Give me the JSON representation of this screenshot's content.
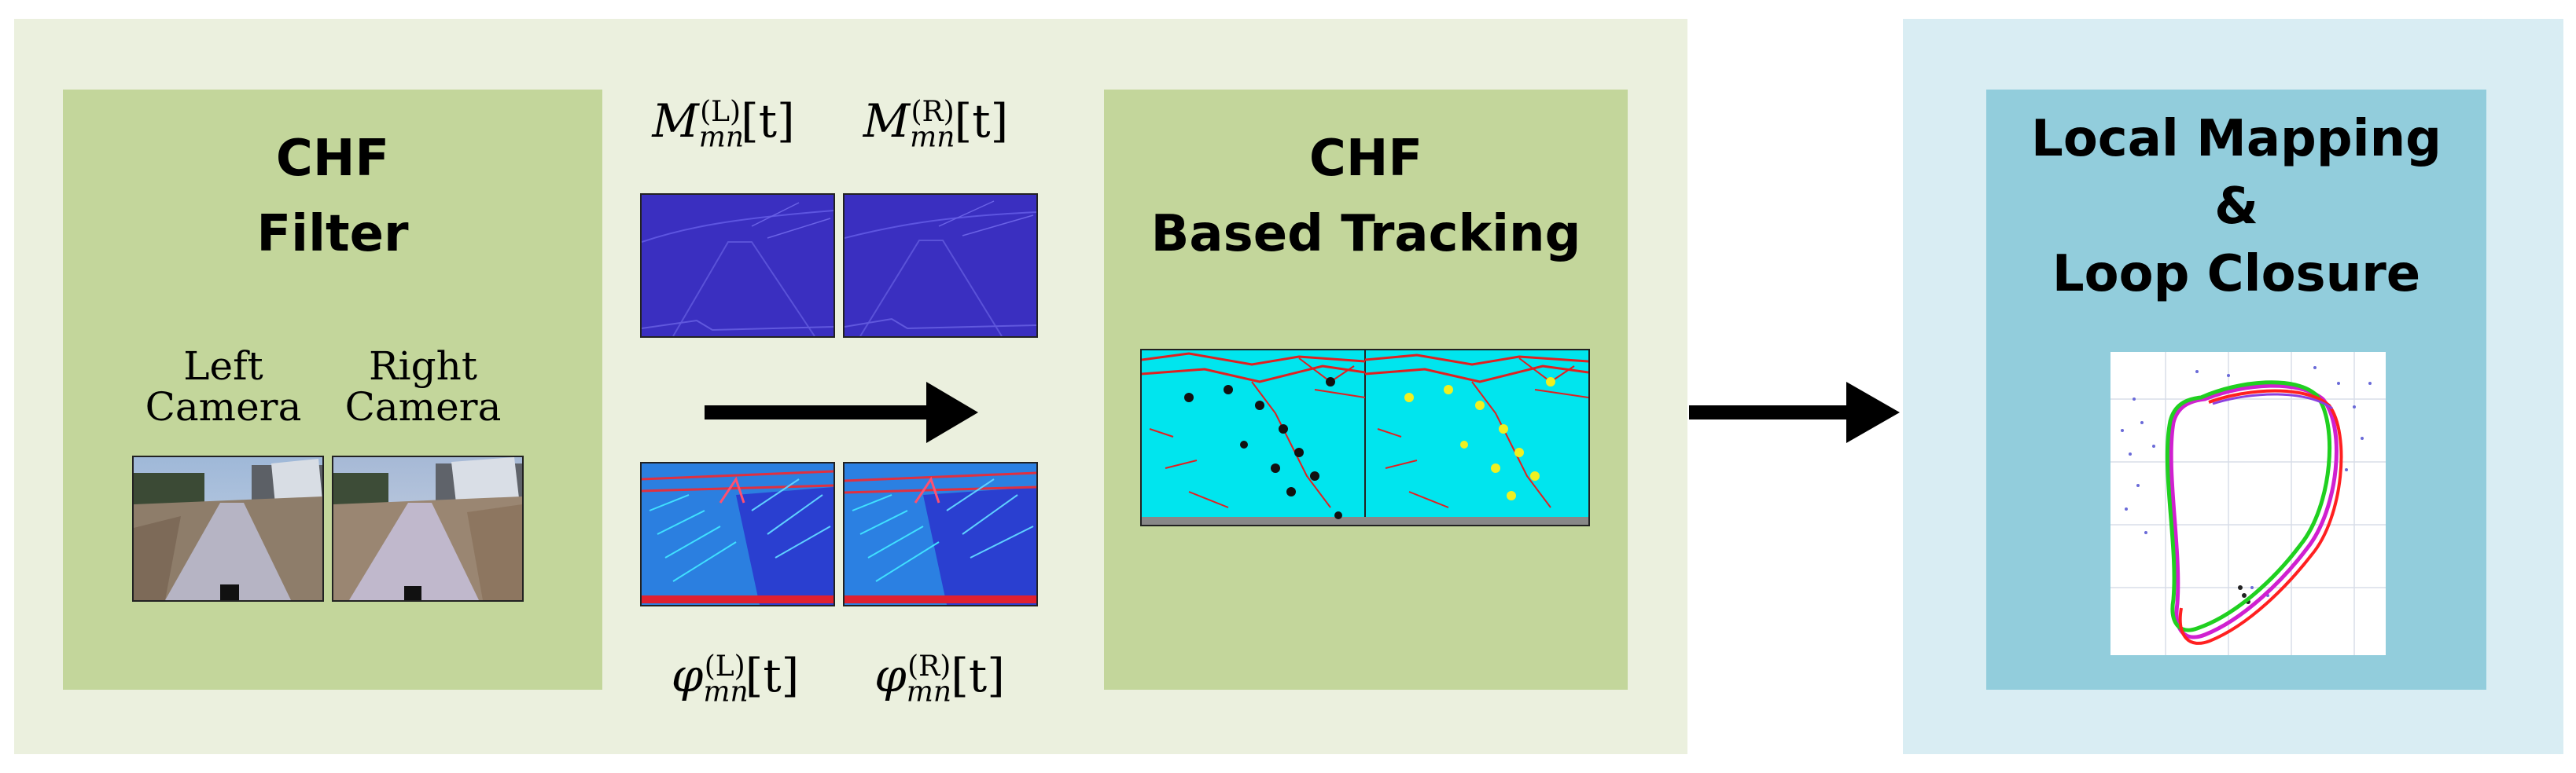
{
  "chf_filter": {
    "title_line1": "CHF",
    "title_line2": "Filter",
    "left_camera_line1": "Left",
    "left_camera_line2": "Camera",
    "right_camera_line1": "Right",
    "right_camera_line2": "Camera"
  },
  "magnitude": {
    "left": {
      "symbol": "M",
      "sub": "mn",
      "sup": "(L)",
      "arg": "[t]"
    },
    "right": {
      "symbol": "M",
      "sub": "mn",
      "sup": "(R)",
      "arg": "[t]"
    }
  },
  "phase": {
    "left": {
      "symbol": "φ",
      "sub": "mn",
      "sup": "(L)",
      "arg": "[t]"
    },
    "right": {
      "symbol": "φ",
      "sub": "mn",
      "sup": "(R)",
      "arg": "[t]"
    }
  },
  "tracking": {
    "title_line1": "CHF",
    "title_line2": "Based Tracking"
  },
  "local_mapping": {
    "title_line1": "Local Mapping",
    "title_line2": "&",
    "title_line3": "Loop Closure"
  },
  "colors": {
    "outer_left_panel": "#ebf0de",
    "outer_right_panel": "#d9edf3",
    "green_box": "#c3d69b",
    "blue_box": "#92cddc",
    "magnitude_map": "#3a2fc0",
    "tracking_background": "#00e5ee",
    "tracking_edges": "#e02020",
    "trajectory_green": "#20d020",
    "trajectory_magenta": "#d020d0",
    "trajectory_red": "#ff2020"
  }
}
